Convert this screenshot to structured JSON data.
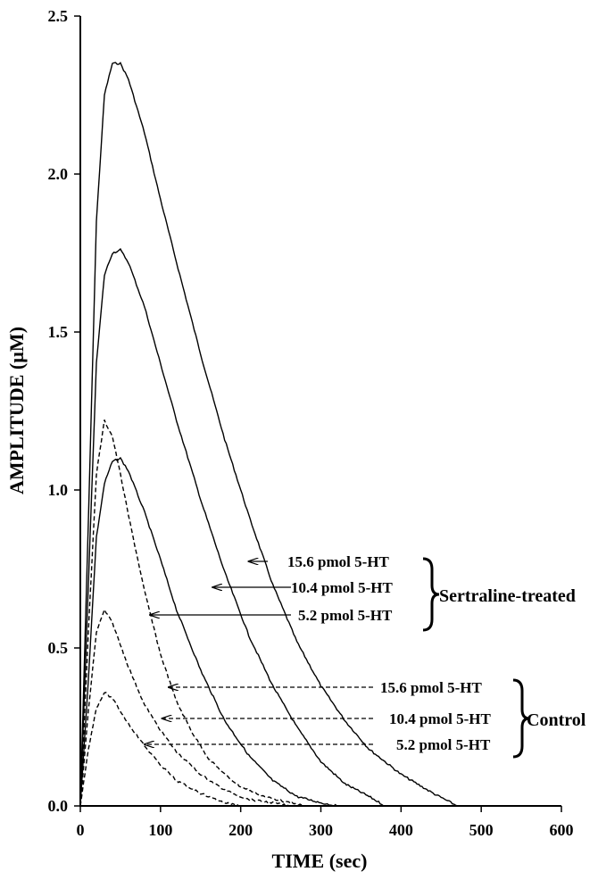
{
  "chart_data": {
    "type": "line",
    "xlabel": "TIME (sec)",
    "ylabel": "AMPLITUDE (µM)",
    "xlim": [
      0,
      600
    ],
    "ylim": [
      0,
      2.5
    ],
    "xticks": [
      "0",
      "100",
      "200",
      "300",
      "400",
      "500",
      "600"
    ],
    "yticks": [
      "0.0",
      "0.5",
      "1.0",
      "1.5",
      "2.0",
      "2.5"
    ],
    "grid": false,
    "series": [
      {
        "name": "15.6 pmol 5-HT",
        "group": "Sertraline-treated",
        "style": "solid",
        "x": [
          0,
          10,
          20,
          30,
          40,
          50,
          60,
          80,
          100,
          120,
          150,
          180,
          210,
          240,
          270,
          300,
          330,
          360,
          400,
          440,
          470
        ],
        "y": [
          0,
          0.9,
          1.85,
          2.25,
          2.35,
          2.35,
          2.3,
          2.13,
          1.92,
          1.72,
          1.43,
          1.16,
          0.92,
          0.7,
          0.52,
          0.38,
          0.27,
          0.18,
          0.1,
          0.04,
          0
        ]
      },
      {
        "name": "10.4 pmol 5-HT",
        "group": "Sertraline-treated",
        "style": "solid",
        "x": [
          0,
          10,
          20,
          30,
          40,
          50,
          60,
          80,
          100,
          120,
          150,
          180,
          210,
          240,
          270,
          300,
          330,
          360,
          380
        ],
        "y": [
          0,
          0.7,
          1.4,
          1.68,
          1.75,
          1.76,
          1.72,
          1.58,
          1.4,
          1.22,
          0.97,
          0.74,
          0.54,
          0.38,
          0.25,
          0.14,
          0.07,
          0.03,
          0
        ]
      },
      {
        "name": "5.2 pmol 5-HT",
        "group": "Sertraline-treated",
        "style": "solid",
        "x": [
          0,
          10,
          20,
          30,
          40,
          50,
          60,
          80,
          100,
          120,
          150,
          180,
          210,
          240,
          270,
          300,
          320
        ],
        "y": [
          0,
          0.4,
          0.85,
          1.02,
          1.09,
          1.1,
          1.06,
          0.93,
          0.78,
          0.62,
          0.43,
          0.27,
          0.16,
          0.08,
          0.03,
          0.01,
          0
        ]
      },
      {
        "name": "15.6 pmol 5-HT",
        "group": "Control",
        "style": "dashed",
        "x": [
          0,
          10,
          20,
          30,
          40,
          50,
          60,
          80,
          100,
          120,
          140,
          160,
          180,
          200,
          230,
          260,
          280
        ],
        "y": [
          0,
          0.55,
          1.05,
          1.22,
          1.17,
          1.05,
          0.92,
          0.68,
          0.48,
          0.33,
          0.23,
          0.15,
          0.1,
          0.06,
          0.03,
          0.01,
          0
        ]
      },
      {
        "name": "10.4 pmol 5-HT",
        "group": "Control",
        "style": "dashed",
        "x": [
          0,
          10,
          20,
          30,
          40,
          50,
          60,
          80,
          100,
          120,
          150,
          180,
          210,
          240,
          260
        ],
        "y": [
          0,
          0.3,
          0.55,
          0.62,
          0.58,
          0.51,
          0.44,
          0.32,
          0.24,
          0.17,
          0.1,
          0.05,
          0.02,
          0.01,
          0
        ]
      },
      {
        "name": "5.2 pmol 5-HT",
        "group": "Control",
        "style": "dashed",
        "x": [
          0,
          10,
          20,
          30,
          40,
          50,
          60,
          80,
          100,
          120,
          150,
          180,
          200
        ],
        "y": [
          0,
          0.18,
          0.31,
          0.36,
          0.34,
          0.3,
          0.26,
          0.19,
          0.13,
          0.08,
          0.04,
          0.01,
          0
        ]
      }
    ],
    "annotations": [
      {
        "text": "15.6 pmol 5-HT",
        "group": "Sertraline-treated",
        "style": "solid",
        "arrow_to": [
          210,
          0.78
        ]
      },
      {
        "text": "10.4 pmol 5-HT",
        "group": "Sertraline-treated",
        "style": "solid",
        "arrow_to": [
          165,
          0.68
        ]
      },
      {
        "text": "5.2 pmol 5-HT",
        "group": "Sertraline-treated",
        "style": "solid",
        "arrow_to": [
          87,
          0.6
        ]
      },
      {
        "text": "15.6 pmol 5-HT",
        "group": "Control",
        "style": "dashed",
        "arrow_to": [
          110,
          0.37
        ]
      },
      {
        "text": "10.4 pmol 5-HT",
        "group": "Control",
        "style": "dashed",
        "arrow_to": [
          102,
          0.27
        ]
      },
      {
        "text": "5.2 pmol 5-HT",
        "group": "Control",
        "style": "dashed",
        "arrow_to": [
          80,
          0.19
        ]
      }
    ],
    "groups": [
      {
        "label": "Sertraline-treated"
      },
      {
        "label": "Control"
      }
    ]
  }
}
